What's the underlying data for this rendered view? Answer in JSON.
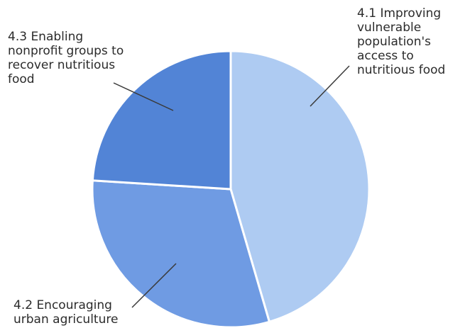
{
  "chart_data": {
    "type": "pie",
    "title": "",
    "start_angle_deg": 0,
    "direction": "clockwise",
    "slices": [
      {
        "label": "4.1 Improving\nvulnerable\npopulation's\naccess to\nnutritious food",
        "value": 45.5,
        "color": "#aecbf2"
      },
      {
        "label": "4.2 Encouraging\nurban agriculture",
        "value": 30.5,
        "color": "#6f9be3"
      },
      {
        "label": "4.3 Enabling\nnonprofit groups to\nrecover nutritious\nfood",
        "value": 24.0,
        "color": "#5284d6"
      }
    ]
  }
}
